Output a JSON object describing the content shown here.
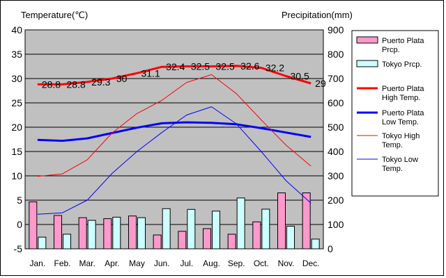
{
  "chart_data": {
    "type": "bar+line",
    "title": "",
    "left_axis_title": "Temperature(℃)",
    "right_axis_title": "Precipitation(mm)",
    "categories": [
      "Jan.",
      "Feb.",
      "Mar.",
      "Apr.",
      "May",
      "Jun.",
      "Jul.",
      "Aug.",
      "Sep.",
      "Oct.",
      "Nov.",
      "Dec."
    ],
    "left_axis": {
      "min": -5,
      "max": 40,
      "step": 5,
      "ticks": [
        "-5",
        "0",
        "5",
        "10",
        "15",
        "20",
        "25",
        "30",
        "35",
        "40"
      ]
    },
    "right_axis": {
      "min": 0,
      "max": 900,
      "step": 100,
      "ticks": [
        "0",
        "100",
        "200",
        "300",
        "400",
        "500",
        "600",
        "700",
        "800",
        "900"
      ]
    },
    "grid": "horizontal",
    "plot_background": "#c0c0c0",
    "legend_placement": "right",
    "bar_series": [
      {
        "name": "Puerto Plata Prcp.",
        "color": "#ff99cc",
        "values": [
          193,
          137,
          128,
          124,
          135,
          57,
          72,
          83,
          60,
          111,
          230,
          230
        ]
      },
      {
        "name": "Tokyo Prcp.",
        "color": "#ccffff",
        "values": [
          48,
          60,
          117,
          130,
          128,
          165,
          162,
          155,
          209,
          163,
          93,
          40
        ]
      }
    ],
    "line_series": [
      {
        "name": "Puerto Plata High Temp.",
        "color": "#ff0000",
        "width": 3,
        "values": [
          28.8,
          28.8,
          29.3,
          30,
          31.1,
          32.4,
          32.5,
          32.5,
          32.6,
          32.2,
          30.5,
          29
        ],
        "labels": [
          "28.8",
          "28.8",
          "29.3",
          "30",
          "31.1",
          "32.4",
          "32.5",
          "32.5",
          "32.6",
          "32.2",
          "30.5",
          "29"
        ]
      },
      {
        "name": "Puerto Plata Low Temp.",
        "color": "#0000ff",
        "width": 3,
        "values": [
          17.4,
          17.2,
          17.7,
          18.8,
          19.9,
          20.8,
          21.0,
          20.9,
          20.6,
          19.8,
          18.9,
          18.0
        ]
      },
      {
        "name": "Tokyo High Temp.",
        "color": "#ff0000",
        "width": 1,
        "values": [
          9.9,
          10.4,
          13.3,
          18.8,
          22.8,
          25.5,
          29.2,
          30.8,
          26.9,
          21.5,
          16.3,
          12.0
        ]
      },
      {
        "name": "Tokyo Low Temp.",
        "color": "#0000ff",
        "width": 1,
        "values": [
          2.1,
          2.4,
          5.0,
          10.5,
          15.0,
          18.9,
          22.5,
          24.2,
          20.7,
          15.0,
          9.0,
          4.4
        ]
      }
    ],
    "legend_labels": [
      [
        "Puerto Plata",
        "Prcp."
      ],
      [
        "Tokyo Prcp."
      ],
      [
        "Puerto Plata",
        "High Temp."
      ],
      [
        "Puerto Plata",
        "Low Temp."
      ],
      [
        "Tokyo High",
        "Temp."
      ],
      [
        "Tokyo Low",
        "Temp."
      ]
    ]
  }
}
